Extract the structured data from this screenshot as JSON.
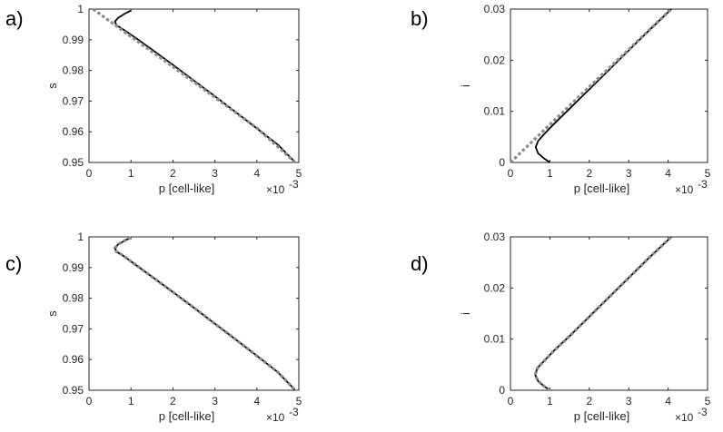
{
  "chart_data": [
    {
      "type": "line",
      "panel_label": "a)",
      "xlabel": "p [cell-like]",
      "ylabel": "s",
      "x_exponent_label": "×10",
      "x_exponent_power": "-3",
      "xlim": [
        0,
        5
      ],
      "ylim": [
        0.95,
        1
      ],
      "xticks": [
        "0",
        "1",
        "2",
        "3",
        "4",
        "5"
      ],
      "yticks": [
        "0.95",
        "0.96",
        "0.97",
        "0.98",
        "0.99",
        "1"
      ],
      "series": [
        {
          "style": "solid",
          "color": "#000000",
          "x": [
            1.0,
            0.85,
            0.7,
            0.62,
            0.65,
            0.8,
            1.1,
            1.5,
            2.0,
            2.5,
            3.0,
            3.5,
            4.0,
            4.5,
            4.9
          ],
          "y": [
            0.9995,
            0.9985,
            0.9972,
            0.996,
            0.9948,
            0.9935,
            0.9907,
            0.9868,
            0.9818,
            0.9767,
            0.9716,
            0.9664,
            0.9611,
            0.9558,
            0.9502
          ]
        },
        {
          "style": "dotted",
          "color": "#8c8c8c",
          "x": [
            0.1,
            0.5,
            1.0,
            2.0,
            3.0,
            4.0,
            4.9
          ],
          "y": [
            1.0,
            0.996,
            0.991,
            0.9812,
            0.9712,
            0.9612,
            0.9502
          ]
        }
      ]
    },
    {
      "type": "line",
      "panel_label": "b)",
      "xlabel": "p [cell-like]",
      "ylabel": "i",
      "x_exponent_label": "×10",
      "x_exponent_power": "-3",
      "xlim": [
        0,
        5
      ],
      "ylim": [
        0,
        0.03
      ],
      "xticks": [
        "0",
        "1",
        "2",
        "3",
        "4",
        "5"
      ],
      "yticks": [
        "0",
        "0.01",
        "0.02",
        "0.03"
      ],
      "series": [
        {
          "style": "solid",
          "color": "#000000",
          "x": [
            1.0,
            0.85,
            0.7,
            0.64,
            0.7,
            0.85,
            1.1,
            1.5,
            2.0,
            2.5,
            3.0,
            3.5,
            4.08
          ],
          "y": [
            0.0,
            0.0008,
            0.0018,
            0.003,
            0.0042,
            0.0055,
            0.0075,
            0.0105,
            0.0143,
            0.0181,
            0.0219,
            0.0257,
            0.03
          ]
        },
        {
          "style": "dotted",
          "color": "#8c8c8c",
          "x": [
            0.0,
            1.0,
            2.0,
            3.0,
            4.08
          ],
          "y": [
            0.0,
            0.0074,
            0.0148,
            0.0221,
            0.03
          ]
        }
      ]
    },
    {
      "type": "line",
      "panel_label": "c)",
      "xlabel": "p [cell-like]",
      "ylabel": "s",
      "x_exponent_label": "×10",
      "x_exponent_power": "-3",
      "xlim": [
        0,
        5
      ],
      "ylim": [
        0.95,
        1
      ],
      "xticks": [
        "0",
        "1",
        "2",
        "3",
        "4",
        "5"
      ],
      "yticks": [
        "0.95",
        "0.96",
        "0.97",
        "0.98",
        "0.99",
        "1"
      ],
      "series": [
        {
          "style": "solid",
          "color": "#000000",
          "x": [
            1.0,
            0.85,
            0.7,
            0.62,
            0.65,
            0.8,
            1.1,
            1.5,
            2.0,
            2.5,
            3.0,
            3.5,
            4.0,
            4.5,
            4.9
          ],
          "y": [
            0.9998,
            0.9988,
            0.9976,
            0.9964,
            0.9952,
            0.994,
            0.991,
            0.987,
            0.982,
            0.9769,
            0.9717,
            0.9665,
            0.9612,
            0.9559,
            0.9502
          ]
        },
        {
          "style": "dotted",
          "color": "#8c8c8c",
          "x": [
            1.0,
            0.85,
            0.7,
            0.62,
            0.65,
            0.8,
            1.1,
            1.5,
            2.0,
            2.5,
            3.0,
            3.5,
            4.0,
            4.5,
            4.9
          ],
          "y": [
            0.9998,
            0.9988,
            0.9976,
            0.9964,
            0.9952,
            0.994,
            0.991,
            0.987,
            0.982,
            0.9769,
            0.9717,
            0.9665,
            0.9612,
            0.9559,
            0.9502
          ]
        }
      ]
    },
    {
      "type": "line",
      "panel_label": "d)",
      "xlabel": "p [cell-like]",
      "ylabel": "i",
      "x_exponent_label": "×10",
      "x_exponent_power": "-3",
      "xlim": [
        0,
        5
      ],
      "ylim": [
        0,
        0.03
      ],
      "xticks": [
        "0",
        "1",
        "2",
        "3",
        "4",
        "5"
      ],
      "yticks": [
        "0",
        "0.01",
        "0.02",
        "0.03"
      ],
      "series": [
        {
          "style": "solid",
          "color": "#000000",
          "x": [
            1.0,
            0.85,
            0.7,
            0.63,
            0.68,
            0.85,
            1.1,
            1.5,
            2.0,
            2.5,
            3.0,
            3.5,
            4.08
          ],
          "y": [
            0.0,
            0.0008,
            0.0018,
            0.003,
            0.0043,
            0.0057,
            0.0077,
            0.0106,
            0.0144,
            0.0182,
            0.022,
            0.0258,
            0.03
          ]
        },
        {
          "style": "dotted",
          "color": "#8c8c8c",
          "x": [
            1.0,
            0.85,
            0.7,
            0.63,
            0.68,
            0.85,
            1.1,
            1.5,
            2.0,
            2.5,
            3.0,
            3.5,
            4.08
          ],
          "y": [
            0.0,
            0.0008,
            0.0018,
            0.003,
            0.0043,
            0.0057,
            0.0077,
            0.0106,
            0.0144,
            0.0182,
            0.022,
            0.0258,
            0.03
          ]
        }
      ]
    }
  ]
}
